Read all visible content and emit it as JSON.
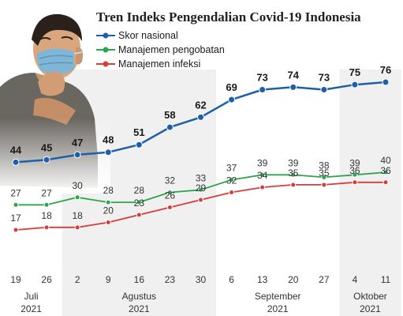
{
  "chart_data": {
    "type": "line",
    "title": "Tren Indeks Pengendalian Covid-19 Indonesia",
    "x": [
      "19",
      "26",
      "2",
      "9",
      "16",
      "23",
      "30",
      "6",
      "13",
      "20",
      "27",
      "4",
      "11"
    ],
    "months": [
      {
        "name": "Juli",
        "year": "2021",
        "from": 0,
        "to": 1
      },
      {
        "name": "Agustus",
        "year": "2021",
        "from": 2,
        "to": 6
      },
      {
        "name": "September",
        "year": "2021",
        "from": 7,
        "to": 10
      },
      {
        "name": "Oktober",
        "year": "2021",
        "from": 11,
        "to": 12
      }
    ],
    "series": [
      {
        "name": "Skor nasional",
        "color": "#1f5fa8",
        "values": [
          44,
          45,
          47,
          48,
          51,
          58,
          62,
          69,
          73,
          74,
          73,
          75,
          76
        ]
      },
      {
        "name": "Manajemen pengobatan",
        "color": "#2ea44f",
        "values": [
          27,
          27,
          30,
          28,
          28,
          32,
          33,
          37,
          39,
          39,
          38,
          39,
          40
        ]
      },
      {
        "name": "Manajemen infeksi",
        "color": "#d63c3c",
        "values": [
          17,
          18,
          18,
          20,
          23,
          26,
          29,
          32,
          34,
          35,
          35,
          36,
          36
        ]
      }
    ],
    "legend_position": "top-right"
  }
}
